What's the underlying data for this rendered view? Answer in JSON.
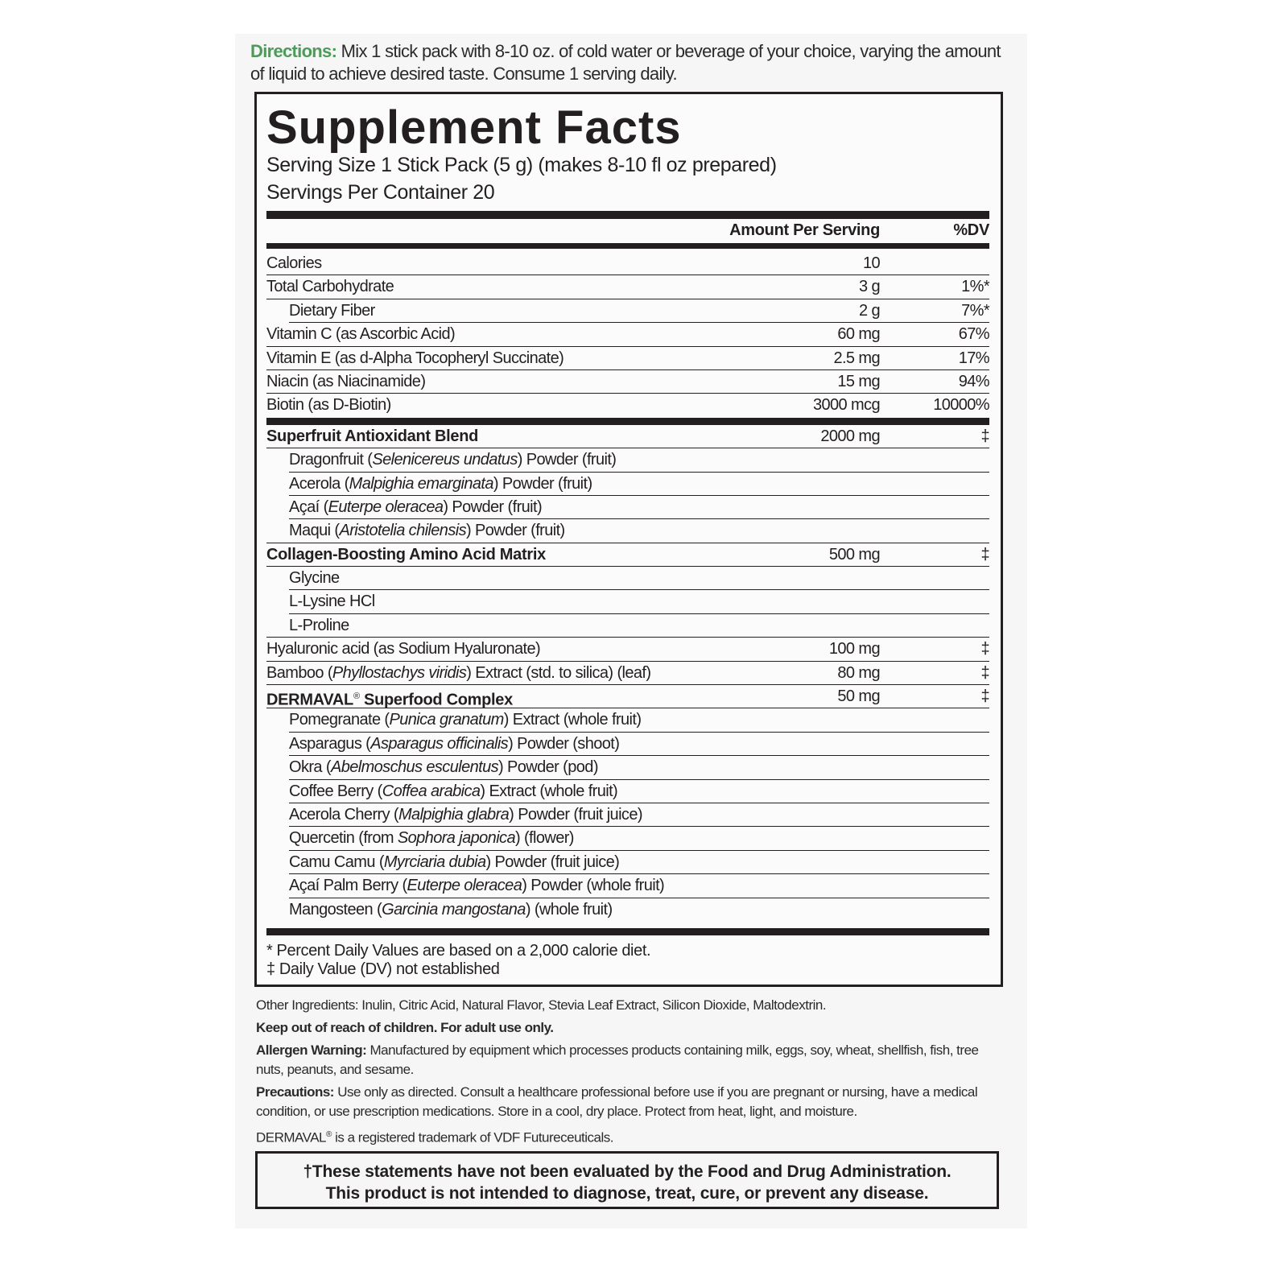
{
  "directions": {
    "label": "Directions:",
    "text": " Mix 1 stick pack with 8-10 oz. of cold water or beverage of your choice, varying the amount of liquid to achieve desired taste. Consume 1 serving daily."
  },
  "facts": {
    "title": "Supplement Facts",
    "serving_size": "Serving Size 1 Stick Pack (5 g) (makes 8-10 fl oz prepared)",
    "servings_per_container": "Servings Per Container 20",
    "col_amount": "Amount Per Serving",
    "col_dv": "%DV",
    "rows": [
      {
        "name": "Calories",
        "amount": "10",
        "dv": ""
      },
      {
        "name": "Total Carbohydrate",
        "amount": "3 g",
        "dv": "1%*"
      },
      {
        "name": "Dietary Fiber",
        "amount": "2 g",
        "dv": "7%*",
        "indent": true
      },
      {
        "name": "Vitamin C (as Ascorbic Acid)",
        "amount": "60 mg",
        "dv": "67%"
      },
      {
        "name": "Vitamin E (as d-Alpha Tocopheryl Succinate)",
        "amount": "2.5 mg",
        "dv": "17%"
      },
      {
        "name": "Niacin (as Niacinamide)",
        "amount": "15 mg",
        "dv": "94%"
      },
      {
        "name": "Biotin (as D-Biotin)",
        "amount": "3000 mcg",
        "dv": "10000%",
        "thick": true
      },
      {
        "name": "Superfruit Antioxidant Blend",
        "amount": "2000 mg",
        "dv": "‡",
        "bold": true
      },
      {
        "name": "Dragonfruit (",
        "latin": "Selenicereus undatus",
        "rest": ") Powder (fruit)",
        "indent": true
      },
      {
        "name": "Acerola (",
        "latin": "Malpighia emarginata",
        "rest": ") Powder (fruit)",
        "indent": true
      },
      {
        "name": "Açaí (",
        "latin": "Euterpe oleracea",
        "rest": ") Powder (fruit)",
        "indent": true
      },
      {
        "name": "Maqui (",
        "latin": "Aristotelia chilensis",
        "rest": ") Powder (fruit)",
        "indent": true,
        "fullline": true
      },
      {
        "name": "Collagen-Boosting Amino Acid Matrix",
        "amount": "500 mg",
        "dv": "‡",
        "bold": true
      },
      {
        "name": "Glycine",
        "indent": true
      },
      {
        "name": "L-Lysine HCl",
        "indent": true
      },
      {
        "name": "L-Proline",
        "indent": true,
        "fullline": true
      },
      {
        "name": "Hyaluronic acid (as Sodium Hyaluronate)",
        "amount": "100 mg",
        "dv": "‡"
      },
      {
        "name": "Bamboo (",
        "latin": "Phyllostachys viridis",
        "rest": ") Extract (std. to silica) (leaf)",
        "amount": "80 mg",
        "dv": "‡"
      },
      {
        "name": "DERMAVAL",
        "sup": "®",
        "rest": " Superfood Complex",
        "amount": "50 mg",
        "dv": "‡",
        "bold": true
      },
      {
        "name": "Pomegranate (",
        "latin": "Punica granatum",
        "rest": ") Extract (whole fruit)",
        "indent": true
      },
      {
        "name": "Asparagus (",
        "latin": "Asparagus officinalis",
        "rest": ") Powder (shoot)",
        "indent": true
      },
      {
        "name": "Okra (",
        "latin": "Abelmoschus esculentus",
        "rest": ") Powder (pod)",
        "indent": true
      },
      {
        "name": "Coffee Berry (",
        "latin": "Coffea arabica",
        "rest": ") Extract (whole fruit)",
        "indent": true
      },
      {
        "name": "Acerola Cherry (",
        "latin": "Malpighia glabra",
        "rest": ") Powder (fruit juice)",
        "indent": true
      },
      {
        "name": "Quercetin (from ",
        "latin": "Sophora japonica",
        "rest": ") (flower)",
        "indent": true
      },
      {
        "name": "Camu Camu (",
        "latin": "Myrciaria dubia",
        "rest": ") Powder (fruit juice)",
        "indent": true
      },
      {
        "name": "Açaí Palm Berry (",
        "latin": "Euterpe oleracea",
        "rest": ") Powder (whole fruit)",
        "indent": true
      },
      {
        "name": "Mangosteen (",
        "latin": "Garcinia mangostana",
        "rest": ") (whole fruit)",
        "indent": true,
        "noline": true
      }
    ],
    "footnote_1": "* Percent Daily Values are based on a 2,000 calorie diet.",
    "footnote_2": "‡ Daily Value (DV) not established"
  },
  "info": {
    "other_ingredients": "Other Ingredients: Inulin, Citric Acid, Natural Flavor, Stevia Leaf Extract, Silicon Dioxide, Maltodextrin.",
    "keep_out": "Keep out of reach of children. For adult use only.",
    "allergen_label": "Allergen Warning:",
    "allergen_text": " Manufactured by equipment which processes products containing milk, eggs, soy, wheat, shellfish, fish, tree nuts, peanuts, and sesame.",
    "precautions_label": "Precautions:",
    "precautions_text": " Use only as directed. Consult a healthcare professional before use if you are pregnant or nursing, have a medical condition, or use prescription medications. Store in a cool, dry place. Protect from heat, light, and moisture.",
    "trademark_brand": "DERMAVAL",
    "trademark_sup": "®",
    "trademark_text": " is a registered trademark of VDF Futureceuticals."
  },
  "fda": {
    "line1": "†These statements have not been evaluated by the Food and Drug Administration.",
    "line2": "This product is not intended to diagnose, treat, cure, or prevent any disease."
  },
  "colors": {
    "directions_label": "#4e9a5a",
    "text": "#231f20",
    "panel": "#f6f6f6"
  }
}
